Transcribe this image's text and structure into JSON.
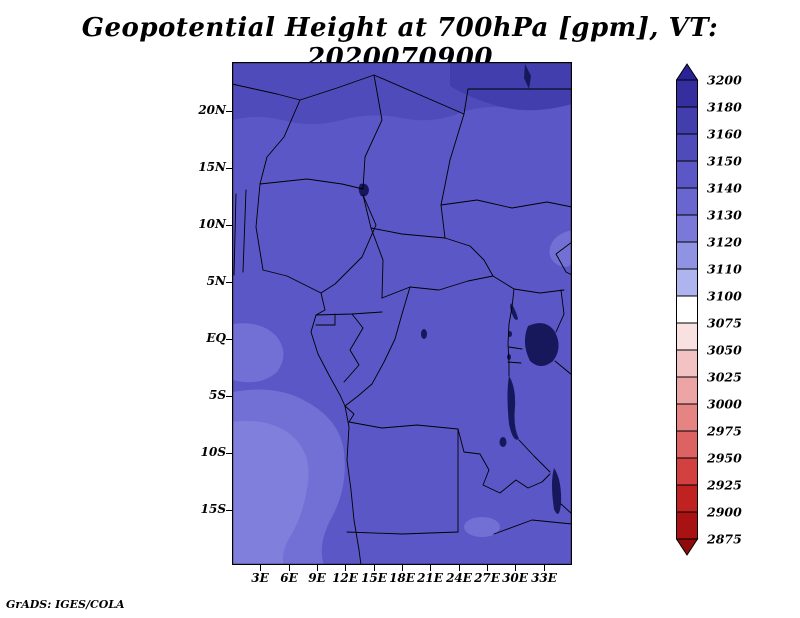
{
  "title": "Geopotential Height at 700hPa [gpm], VT: 2020070900",
  "footer": "GrADS: IGES/COLA",
  "chart_data": {
    "type": "heatmap",
    "title": "Geopotential Height at 700hPa [gpm], VT: 2020070900",
    "variable": "Geopotential Height",
    "level_hPa": 700,
    "units": "gpm",
    "valid_time": "2020070900",
    "x_axis": {
      "ticks": [
        "3E",
        "6E",
        "9E",
        "12E",
        "15E",
        "18E",
        "21E",
        "24E",
        "27E",
        "30E",
        "33E"
      ]
    },
    "y_axis": {
      "ticks": [
        "20N",
        "15N",
        "10N",
        "5N",
        "EQ",
        "5S",
        "10S",
        "15S"
      ]
    },
    "colorbar": {
      "position": "right",
      "orientation": "vertical",
      "boundary_labels": [
        3200,
        3180,
        3160,
        3150,
        3140,
        3130,
        3120,
        3110,
        3100,
        3075,
        3050,
        3025,
        3000,
        2975,
        2950,
        2925,
        2900,
        2875
      ],
      "above_color": "#2a2397",
      "below_color": "#8f0a0b",
      "segment_colors_top_to_bottom": [
        "#342e9f",
        "#423eae",
        "#4f4bba",
        "#5b57c6",
        "#6966d0",
        "#7a78d9",
        "#9093e2",
        "#aeb4ee",
        "#ffffff",
        "#f9e1e1",
        "#f3c3c3",
        "#eda4a4",
        "#e68484",
        "#dd6262",
        "#d24040",
        "#c02222",
        "#a81212"
      ]
    },
    "field_values_on_map": {
      "min_band": "3110-3120",
      "max_band": "3150-3160",
      "dominant_band": "3130-3150",
      "note": "Lower heights (lighter purple ~3120-3130) over the southwest/Atlantic coast; slightly higher heights (darker blue ~3150-3160) along the northern edge of the domain"
    },
    "map_fills": {
      "base": "#5b57c6",
      "north_band": "#4f4bba",
      "northeast_corner": "#423eae",
      "light_region": "#7270d4",
      "lighter_core": "#817fdc",
      "lake": "#17175c"
    }
  }
}
